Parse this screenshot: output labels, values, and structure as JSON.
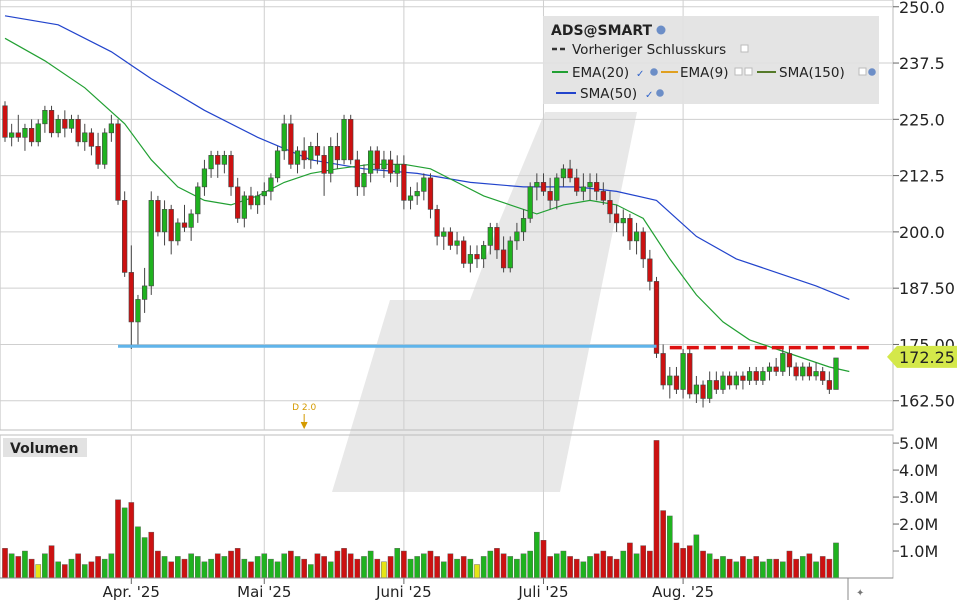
{
  "colors": {
    "up": "#1fb21f",
    "down": "#cc1111",
    "neutral": "#e5e516",
    "ema20": "#22a033",
    "sma50": "#2244cc",
    "ema9": "#e0a020",
    "support": "#5fb4ea",
    "prevclose": "#dd1111",
    "lastprice_bg": "#d4e84a",
    "grid": "#cfcfcf"
  },
  "legend": {
    "title": "ADS@SMART",
    "items": [
      {
        "label": "Vorheriger Schlusskurs",
        "color": "#333333",
        "style": "dashed"
      },
      {
        "label": "EMA(20)",
        "color": "#22a033",
        "style": "solid"
      },
      {
        "label": "EMA(9)",
        "color": "#e0a020",
        "style": "solid"
      },
      {
        "label": "SMA(150)",
        "color": "#557a2a",
        "style": "solid"
      },
      {
        "label": "SMA(50)",
        "color": "#2244cc",
        "style": "solid"
      }
    ]
  },
  "volume_title": "Volumen",
  "annotation": "D 2.0",
  "last_price_label": "172.25",
  "chart_data": {
    "type": "candlestick",
    "y_ticks": [
      "250.0",
      "237.5",
      "225.0",
      "212.5",
      "200.0",
      "187.50",
      "175.00",
      "162.50"
    ],
    "y_tick_values": [
      250,
      237.5,
      225,
      212.5,
      200,
      187.5,
      175,
      162.5
    ],
    "ylim": [
      156,
      251.5
    ],
    "x_ticks": [
      "Apr. '25",
      "Mai '25",
      "Juni '25",
      "Juli '25",
      "Aug. '25"
    ],
    "x_tick_index": [
      19,
      39,
      60,
      81,
      102
    ],
    "volume_ticks": [
      "5.0M",
      "4.0M",
      "3.0M",
      "2.0M",
      "1.0M"
    ],
    "volume_tick_values": [
      5.0,
      4.0,
      3.0,
      2.0,
      1.0
    ],
    "volume_lim": [
      0,
      5.3
    ],
    "last_price": 172.25,
    "previous_close": 174.3,
    "support_level": 174.6,
    "support_range": [
      17,
      98
    ],
    "prevclose_range": [
      100,
      129
    ],
    "annotation_index": 45,
    "candles": [
      [
        228,
        229,
        220,
        221,
        1.1,
        -1
      ],
      [
        221,
        224,
        219,
        222,
        0.9,
        1
      ],
      [
        222,
        226,
        220,
        221,
        0.8,
        -1
      ],
      [
        221,
        224,
        218,
        223,
        1.0,
        1
      ],
      [
        223,
        225,
        219,
        220,
        0.7,
        -1
      ],
      [
        220,
        225,
        219,
        224,
        0.5,
        0
      ],
      [
        224,
        228,
        222,
        227,
        0.9,
        1
      ],
      [
        227,
        228,
        221,
        222,
        1.2,
        -1
      ],
      [
        222,
        226,
        221,
        225,
        0.6,
        1
      ],
      [
        225,
        227,
        221,
        223,
        0.5,
        -1
      ],
      [
        223,
        226,
        222,
        225,
        0.7,
        1
      ],
      [
        225,
        226,
        219,
        220,
        0.9,
        -1
      ],
      [
        220,
        224,
        218,
        222,
        0.5,
        1
      ],
      [
        222,
        223,
        217,
        219,
        0.6,
        -1
      ],
      [
        219,
        222,
        214,
        215,
        0.8,
        -1
      ],
      [
        215,
        223,
        214,
        222,
        0.7,
        1
      ],
      [
        222,
        226,
        220,
        224,
        0.9,
        1
      ],
      [
        224,
        225,
        206,
        207,
        2.9,
        -1
      ],
      [
        207,
        209,
        190,
        191,
        2.6,
        1
      ],
      [
        191,
        197,
        174,
        180,
        2.8,
        -1
      ],
      [
        180,
        186,
        175,
        185,
        1.9,
        1
      ],
      [
        185,
        192,
        182,
        188,
        1.5,
        1
      ],
      [
        188,
        209,
        186,
        207,
        1.7,
        -1
      ],
      [
        207,
        208,
        199,
        200,
        1.0,
        -1
      ],
      [
        200,
        207,
        197,
        205,
        0.8,
        1
      ],
      [
        205,
        206,
        195,
        198,
        0.6,
        -1
      ],
      [
        198,
        203,
        197,
        202,
        0.8,
        1
      ],
      [
        202,
        206,
        200,
        201,
        0.7,
        -1
      ],
      [
        201,
        205,
        198,
        204,
        0.9,
        1
      ],
      [
        204,
        211,
        202,
        210,
        0.8,
        1
      ],
      [
        210,
        216,
        208,
        214,
        0.6,
        1
      ],
      [
        214,
        218,
        212,
        217,
        0.7,
        1
      ],
      [
        217,
        218,
        212,
        215,
        0.9,
        -1
      ],
      [
        215,
        218,
        213,
        217,
        0.8,
        1
      ],
      [
        217,
        218,
        208,
        210,
        1.0,
        -1
      ],
      [
        210,
        212,
        202,
        203,
        1.1,
        -1
      ],
      [
        203,
        209,
        201,
        208,
        0.7,
        1
      ],
      [
        208,
        210,
        205,
        206,
        0.6,
        -1
      ],
      [
        206,
        209,
        204,
        208,
        0.8,
        1
      ],
      [
        208,
        211,
        206,
        209,
        0.9,
        1
      ],
      [
        209,
        213,
        207,
        212,
        0.7,
        1
      ],
      [
        212,
        219,
        211,
        218,
        0.6,
        1
      ],
      [
        218,
        226,
        216,
        224,
        0.9,
        1
      ],
      [
        224,
        226,
        214,
        215,
        1.0,
        -1
      ],
      [
        215,
        219,
        213,
        218,
        0.8,
        1
      ],
      [
        218,
        221,
        214,
        216,
        0.7,
        -1
      ],
      [
        216,
        220,
        214,
        219,
        0.5,
        1
      ],
      [
        219,
        222,
        215,
        217,
        0.9,
        -1
      ],
      [
        217,
        219,
        208,
        213,
        0.8,
        -1
      ],
      [
        213,
        221,
        211,
        219,
        0.6,
        1
      ],
      [
        219,
        222,
        214,
        216,
        1.0,
        -1
      ],
      [
        216,
        226,
        215,
        225,
        1.1,
        -1
      ],
      [
        225,
        226,
        215,
        216,
        0.9,
        -1
      ],
      [
        216,
        218,
        208,
        210,
        0.7,
        -1
      ],
      [
        210,
        215,
        208,
        213,
        0.8,
        1
      ],
      [
        213,
        219,
        211,
        218,
        1.0,
        1
      ],
      [
        218,
        219,
        213,
        214,
        0.7,
        -1
      ],
      [
        214,
        218,
        212,
        216,
        0.6,
        0
      ],
      [
        216,
        218,
        211,
        213,
        0.8,
        -1
      ],
      [
        213,
        217,
        210,
        215,
        1.1,
        1
      ],
      [
        215,
        217,
        205,
        207,
        1.0,
        -1
      ],
      [
        207,
        210,
        205,
        208,
        0.7,
        1
      ],
      [
        208,
        211,
        206,
        209,
        0.8,
        1
      ],
      [
        209,
        213,
        207,
        212,
        0.9,
        1
      ],
      [
        212,
        213,
        203,
        205,
        1.0,
        -1
      ],
      [
        205,
        206,
        197,
        199,
        0.8,
        -1
      ],
      [
        199,
        201,
        196,
        200,
        0.6,
        1
      ],
      [
        200,
        201,
        196,
        197,
        0.9,
        -1
      ],
      [
        197,
        200,
        195,
        198,
        0.7,
        1
      ],
      [
        198,
        199,
        192,
        193,
        0.8,
        -1
      ],
      [
        193,
        197,
        191,
        195,
        0.7,
        1
      ],
      [
        195,
        197,
        192,
        194,
        0.5,
        0
      ],
      [
        194,
        198,
        192,
        197,
        0.8,
        1
      ],
      [
        197,
        202,
        195,
        201,
        1.0,
        1
      ],
      [
        201,
        202,
        194,
        196,
        1.1,
        -1
      ],
      [
        196,
        199,
        191,
        192,
        0.9,
        -1
      ],
      [
        192,
        199,
        191,
        198,
        0.8,
        1
      ],
      [
        198,
        202,
        196,
        200,
        0.7,
        1
      ],
      [
        200,
        205,
        198,
        203,
        0.9,
        1
      ],
      [
        203,
        211,
        202,
        210,
        1.0,
        1
      ],
      [
        210,
        213,
        207,
        211,
        1.7,
        1
      ],
      [
        211,
        213,
        208,
        209,
        1.4,
        -1
      ],
      [
        209,
        212,
        205,
        207,
        0.8,
        -1
      ],
      [
        207,
        213,
        205,
        212,
        0.9,
        1
      ],
      [
        212,
        215,
        210,
        214,
        1.0,
        1
      ],
      [
        214,
        216,
        211,
        212,
        0.8,
        -1
      ],
      [
        212,
        214,
        208,
        209,
        0.7,
        -1
      ],
      [
        209,
        213,
        207,
        210,
        0.6,
        1
      ],
      [
        210,
        213,
        207,
        211,
        0.8,
        1
      ],
      [
        211,
        213,
        207,
        209,
        0.9,
        -1
      ],
      [
        209,
        211,
        206,
        207,
        1.0,
        -1
      ],
      [
        207,
        209,
        202,
        204,
        0.8,
        -1
      ],
      [
        204,
        206,
        200,
        202,
        0.7,
        -1
      ],
      [
        202,
        205,
        199,
        203,
        1.0,
        1
      ],
      [
        203,
        204,
        196,
        198,
        1.3,
        -1
      ],
      [
        198,
        202,
        195,
        200,
        0.9,
        1
      ],
      [
        200,
        201,
        192,
        194,
        1.2,
        -1
      ],
      [
        194,
        196,
        187,
        189,
        1.0,
        -1
      ],
      [
        189,
        190,
        172,
        173,
        5.1,
        -1
      ],
      [
        173,
        175,
        165,
        166,
        2.5,
        -1
      ],
      [
        166,
        170,
        163,
        168,
        2.3,
        1
      ],
      [
        168,
        170,
        164,
        165,
        1.3,
        -1
      ],
      [
        165,
        174,
        163,
        173,
        1.1,
        -1
      ],
      [
        173,
        174,
        163,
        164,
        1.2,
        -1
      ],
      [
        164,
        168,
        162,
        166,
        1.6,
        1
      ],
      [
        166,
        167,
        161,
        163,
        1.0,
        -1
      ],
      [
        163,
        169,
        162,
        167,
        0.9,
        1
      ],
      [
        167,
        169,
        164,
        165,
        0.7,
        -1
      ],
      [
        165,
        169,
        164,
        168,
        0.8,
        1
      ],
      [
        168,
        169,
        165,
        166,
        0.7,
        -1
      ],
      [
        166,
        169,
        165,
        168,
        0.6,
        1
      ],
      [
        168,
        169,
        165,
        167,
        0.8,
        -1
      ],
      [
        167,
        170,
        166,
        169,
        0.7,
        1
      ],
      [
        169,
        170,
        166,
        167,
        0.8,
        -1
      ],
      [
        167,
        170,
        166,
        169,
        0.6,
        1
      ],
      [
        169,
        171,
        167,
        170,
        0.7,
        1
      ],
      [
        170,
        172,
        168,
        169,
        0.7,
        -1
      ],
      [
        169,
        174,
        168,
        173,
        0.6,
        1
      ],
      [
        173,
        174,
        168,
        170,
        1.0,
        -1
      ],
      [
        170,
        171,
        167,
        168,
        0.7,
        -1
      ],
      [
        168,
        171,
        167,
        170,
        0.8,
        1
      ],
      [
        170,
        171,
        167,
        168,
        0.9,
        -1
      ],
      [
        168,
        171,
        167,
        169,
        0.6,
        1
      ],
      [
        169,
        170,
        166,
        167,
        0.8,
        -1
      ],
      [
        167,
        169,
        164,
        165,
        0.7,
        -1
      ],
      [
        165,
        172,
        165,
        172,
        1.3,
        1
      ]
    ],
    "ema20": [
      [
        0,
        243
      ],
      [
        6,
        238
      ],
      [
        12,
        232
      ],
      [
        18,
        224
      ],
      [
        22,
        216
      ],
      [
        26,
        210
      ],
      [
        30,
        207
      ],
      [
        34,
        206
      ],
      [
        38,
        208
      ],
      [
        42,
        211
      ],
      [
        46,
        213
      ],
      [
        50,
        214
      ],
      [
        55,
        215
      ],
      [
        60,
        215
      ],
      [
        64,
        214
      ],
      [
        68,
        211
      ],
      [
        72,
        208
      ],
      [
        76,
        206
      ],
      [
        80,
        204
      ],
      [
        84,
        206
      ],
      [
        88,
        207
      ],
      [
        92,
        206
      ],
      [
        96,
        203
      ],
      [
        100,
        194
      ],
      [
        104,
        186
      ],
      [
        108,
        180
      ],
      [
        112,
        176
      ],
      [
        116,
        174
      ],
      [
        120,
        172
      ],
      [
        124,
        170
      ],
      [
        127,
        169
      ]
    ],
    "sma50": [
      [
        0,
        248
      ],
      [
        8,
        246
      ],
      [
        16,
        240
      ],
      [
        22,
        234
      ],
      [
        30,
        227
      ],
      [
        38,
        221
      ],
      [
        46,
        216
      ],
      [
        54,
        214
      ],
      [
        62,
        213
      ],
      [
        70,
        211
      ],
      [
        78,
        210
      ],
      [
        86,
        210
      ],
      [
        92,
        209
      ],
      [
        98,
        207
      ],
      [
        104,
        199
      ],
      [
        110,
        194
      ],
      [
        116,
        191
      ],
      [
        122,
        188
      ],
      [
        127,
        185
      ]
    ]
  }
}
